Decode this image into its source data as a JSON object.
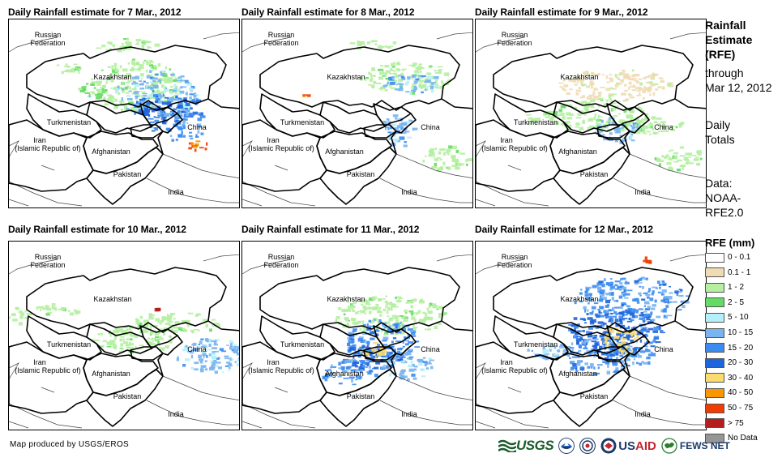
{
  "panels": [
    {
      "title": "Daily Rainfall estimate for 7 Mar., 2012"
    },
    {
      "title": "Daily Rainfall estimate for 8 Mar., 2012"
    },
    {
      "title": "Daily Rainfall estimate for 9 Mar., 2012"
    },
    {
      "title": "Daily Rainfall estimate for 10 Mar., 2012"
    },
    {
      "title": "Daily Rainfall estimate for 11 Mar., 2012"
    },
    {
      "title": "Daily Rainfall estimate for 12 Mar., 2012"
    }
  ],
  "map_labels": {
    "russia_1": "Russian",
    "russia_2": "Federation",
    "kazakhstan": "Kazakhstan",
    "turkmenistan": "Turkmenistan",
    "iran_1": "Iran",
    "iran_2": "(Islamic Republic of)",
    "afghanistan": "Afghanistan",
    "pakistan": "Pakistan",
    "china": "China",
    "india": "India"
  },
  "side_info": {
    "title_line1": "Rainfall",
    "title_line2": "Estimate",
    "title_line3": "(RFE)",
    "through": "through",
    "through_date": "Mar 12, 2012",
    "daily_1": "Daily",
    "daily_2": "Totals",
    "data_1": "Data:",
    "data_2": "NOAA-",
    "data_3": "RFE2.0"
  },
  "legend": {
    "title": "RFE (mm)",
    "items": [
      {
        "label": "0 - 0.1",
        "color": "#ffffff"
      },
      {
        "label": "0.1 - 1",
        "color": "#f0dcb4"
      },
      {
        "label": "1 - 2",
        "color": "#b4f0a0"
      },
      {
        "label": "2 - 5",
        "color": "#64dc64"
      },
      {
        "label": "5 - 10",
        "color": "#b4f0fa"
      },
      {
        "label": "10 - 15",
        "color": "#78b4f0"
      },
      {
        "label": "15 - 20",
        "color": "#3c8cf0"
      },
      {
        "label": "20 - 30",
        "color": "#1e64dc"
      },
      {
        "label": "30 - 40",
        "color": "#fadc6e"
      },
      {
        "label": "40 - 50",
        "color": "#fa9600"
      },
      {
        "label": "50 - 75",
        "color": "#f03c00"
      },
      {
        "label": "> 75",
        "color": "#b41e1e"
      },
      {
        "label": "No Data",
        "color": "#969696"
      }
    ]
  },
  "footer": {
    "credit": "Map produced by USGS/EROS",
    "logo_usgs": "USGS",
    "logo_usaid_us": "US",
    "logo_usaid_aid": "AID",
    "logo_fews": "FEWS NET"
  }
}
